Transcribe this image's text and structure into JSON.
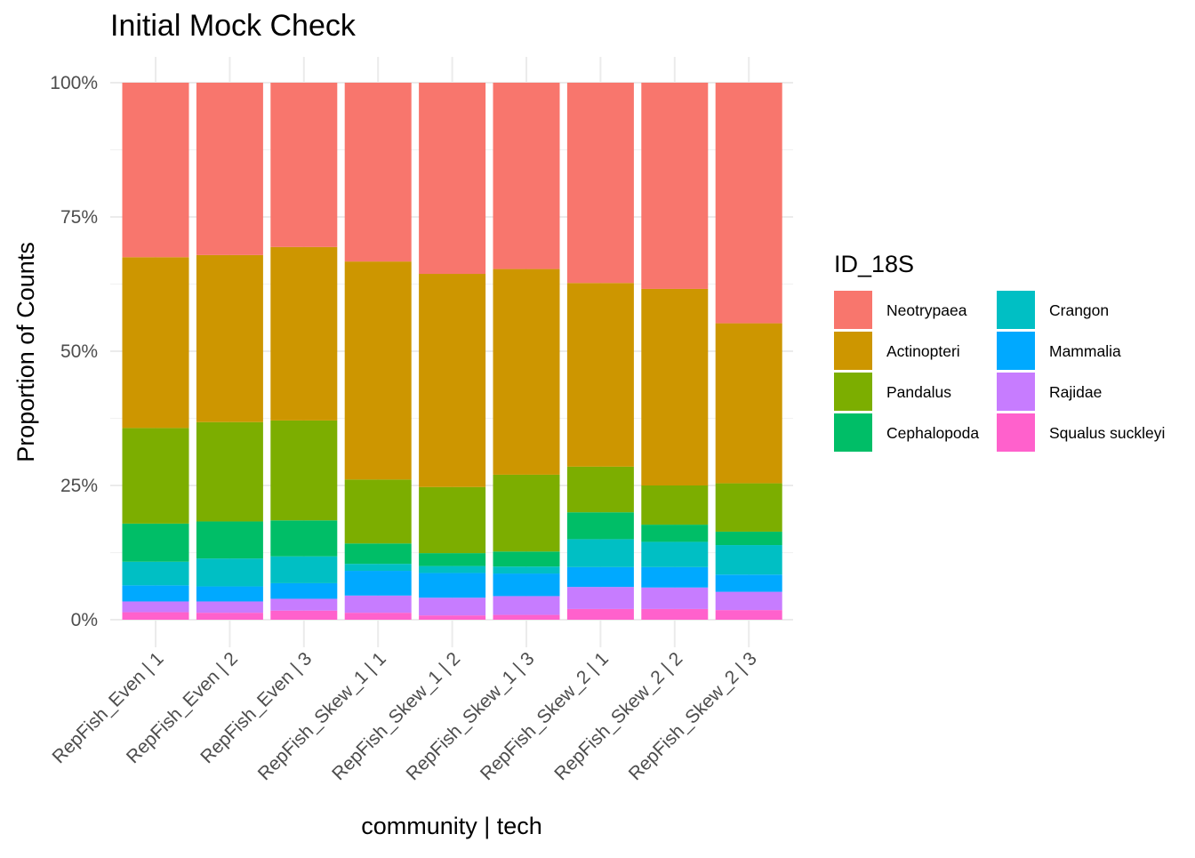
{
  "chart_data": {
    "type": "bar",
    "stacked": true,
    "title": "Initial Mock Check",
    "xlabel": "community | tech",
    "ylabel": "Proportion of Counts",
    "ylim": [
      0,
      1
    ],
    "y_ticks": [
      0,
      0.25,
      0.5,
      0.75,
      1.0
    ],
    "y_tick_labels": [
      "0%",
      "25%",
      "50%",
      "75%",
      "100%"
    ],
    "grid": true,
    "legend_title": "ID_18S",
    "legend_position": "right",
    "categories": [
      "RepFish_Even | 1",
      "RepFish_Even | 2",
      "RepFish_Even | 3",
      "RepFish_Skew_1 | 1",
      "RepFish_Skew_1 | 2",
      "RepFish_Skew_1 | 3",
      "RepFish_Skew_2 | 1",
      "RepFish_Skew_2 | 2",
      "RepFish_Skew_2 | 3"
    ],
    "series": [
      {
        "name": "Neotrypaea",
        "color": "#F8766D",
        "values": [
          0.325,
          0.321,
          0.306,
          0.333,
          0.356,
          0.347,
          0.373,
          0.384,
          0.448
        ]
      },
      {
        "name": "Actinopteri",
        "color": "#CD9600",
        "values": [
          0.318,
          0.311,
          0.323,
          0.406,
          0.397,
          0.383,
          0.342,
          0.366,
          0.298
        ]
      },
      {
        "name": "Pandalus",
        "color": "#7CAE00",
        "values": [
          0.178,
          0.185,
          0.186,
          0.119,
          0.123,
          0.143,
          0.085,
          0.073,
          0.09
        ]
      },
      {
        "name": "Cephalopoda",
        "color": "#00BE67",
        "values": [
          0.071,
          0.069,
          0.067,
          0.038,
          0.024,
          0.028,
          0.05,
          0.032,
          0.025
        ]
      },
      {
        "name": "Crangon",
        "color": "#00BFC4",
        "values": [
          0.044,
          0.052,
          0.05,
          0.013,
          0.013,
          0.013,
          0.052,
          0.047,
          0.055
        ]
      },
      {
        "name": "Mammalia",
        "color": "#00A9FF",
        "values": [
          0.03,
          0.028,
          0.029,
          0.046,
          0.046,
          0.042,
          0.037,
          0.038,
          0.032
        ]
      },
      {
        "name": "Rajidae",
        "color": "#C77CFF",
        "values": [
          0.02,
          0.021,
          0.022,
          0.032,
          0.033,
          0.035,
          0.041,
          0.04,
          0.034
        ]
      },
      {
        "name": "Squalus suckleyi",
        "color": "#FF61CC",
        "values": [
          0.014,
          0.013,
          0.017,
          0.013,
          0.008,
          0.009,
          0.02,
          0.02,
          0.018
        ]
      }
    ]
  }
}
